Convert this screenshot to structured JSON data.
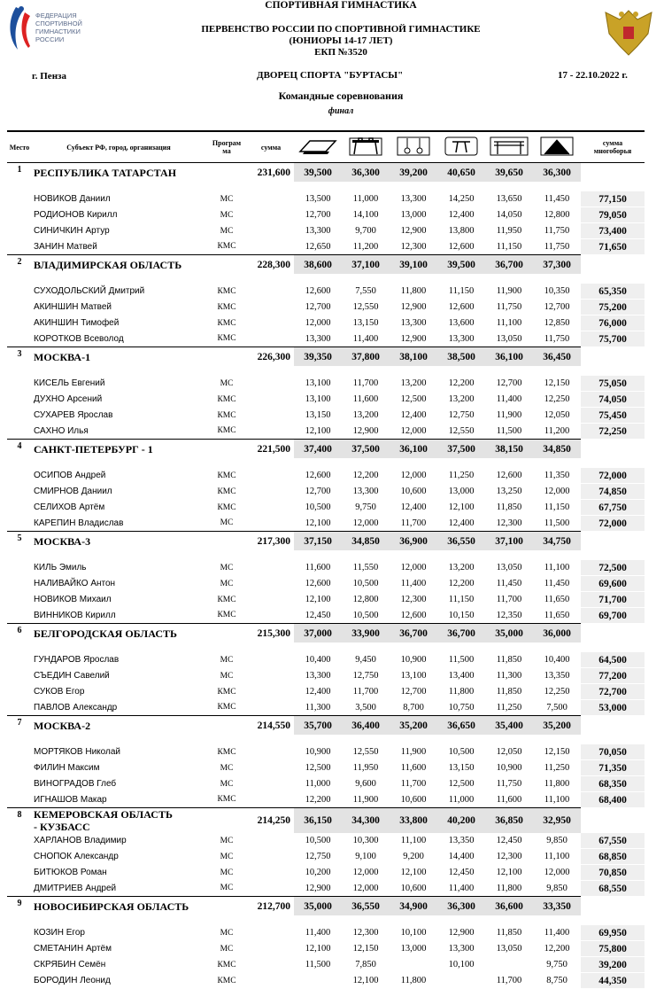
{
  "header": {
    "logo_text": [
      "ФЕДЕРАЦИЯ",
      "СПОРТИВНОЙ",
      "ГИМНАСТИКИ",
      "РОССИИ"
    ],
    "title_lines": [
      "СПОРТИВНАЯ ГИМНАСТИКА",
      "ПЕРВЕНСТВО РОССИИ  ПО СПОРТИВНОЙ ГИМНАСТИКЕ",
      "(ЮНИОРЫ 14-17 ЛЕТ)",
      "ЕКП №3520"
    ],
    "city": "г. Пенза",
    "venue": "ДВОРЕЦ СПОРТА \"БУРТАСЫ\"",
    "dates": "17 - 22.10.2022 г.",
    "competition": "Командные соревнования",
    "stage": "финал"
  },
  "table": {
    "columns": {
      "place": "Место",
      "subject": "Субъект РФ, город, организация",
      "program": "Програм\nма",
      "sum": "сумма",
      "total": "сумма\nмногоборья"
    },
    "teams": [
      {
        "place": "1",
        "name": "РЕСПУБЛИКА ТАТАРСТАН",
        "sum": "231,600",
        "scores": [
          "39,500",
          "36,300",
          "39,200",
          "40,650",
          "39,650",
          "36,300"
        ],
        "athletes": [
          {
            "name": "НОВИКОВ Даниил",
            "program": "МС",
            "scores": [
              "13,500",
              "11,000",
              "13,300",
              "14,250",
              "13,650",
              "11,450"
            ],
            "total": "77,150"
          },
          {
            "name": "РОДИОНОВ Кирилл",
            "program": "МС",
            "scores": [
              "12,700",
              "14,100",
              "13,000",
              "12,400",
              "14,050",
              "12,800"
            ],
            "total": "79,050"
          },
          {
            "name": "СИНИЧКИН Артур",
            "program": "МС",
            "scores": [
              "13,300",
              "9,700",
              "12,900",
              "13,800",
              "11,950",
              "11,750"
            ],
            "total": "73,400"
          },
          {
            "name": "ЗАНИН Матвей",
            "program": "КМС",
            "scores": [
              "12,650",
              "11,200",
              "12,300",
              "12,600",
              "11,150",
              "11,750"
            ],
            "total": "71,650"
          }
        ]
      },
      {
        "place": "2",
        "name": "ВЛАДИМИРСКАЯ ОБЛАСТЬ",
        "sum": "228,300",
        "scores": [
          "38,600",
          "37,100",
          "39,100",
          "39,500",
          "36,700",
          "37,300"
        ],
        "athletes": [
          {
            "name": "СУХОДОЛЬСКИЙ Дмитрий",
            "program": "КМС",
            "scores": [
              "12,600",
              "7,550",
              "11,800",
              "11,150",
              "11,900",
              "10,350"
            ],
            "total": "65,350"
          },
          {
            "name": "АКИНШИН Матвей",
            "program": "КМС",
            "scores": [
              "12,700",
              "12,550",
              "12,900",
              "12,600",
              "11,750",
              "12,700"
            ],
            "total": "75,200"
          },
          {
            "name": "АКИНШИН Тимофей",
            "program": "КМС",
            "scores": [
              "12,000",
              "13,150",
              "13,300",
              "13,600",
              "11,100",
              "12,850"
            ],
            "total": "76,000"
          },
          {
            "name": "КОРОТКОВ Всеволод",
            "program": "КМС",
            "scores": [
              "13,300",
              "11,400",
              "12,900",
              "13,300",
              "13,050",
              "11,750"
            ],
            "total": "75,700"
          }
        ]
      },
      {
        "place": "3",
        "name": "МОСКВА-1",
        "sum": "226,300",
        "scores": [
          "39,350",
          "37,800",
          "38,100",
          "38,500",
          "36,100",
          "36,450"
        ],
        "athletes": [
          {
            "name": "КИСЕЛЬ Евгений",
            "program": "МС",
            "scores": [
              "13,100",
              "11,700",
              "13,200",
              "12,200",
              "12,700",
              "12,150"
            ],
            "total": "75,050"
          },
          {
            "name": "ДУХНО Арсений",
            "program": "КМС",
            "scores": [
              "13,100",
              "11,600",
              "12,500",
              "13,200",
              "11,400",
              "12,250"
            ],
            "total": "74,050"
          },
          {
            "name": "СУХАРЕВ Ярослав",
            "program": "КМС",
            "scores": [
              "13,150",
              "13,200",
              "12,400",
              "12,750",
              "11,900",
              "12,050"
            ],
            "total": "75,450"
          },
          {
            "name": "САХНО Илья",
            "program": "КМС",
            "scores": [
              "12,100",
              "12,900",
              "12,000",
              "12,550",
              "11,500",
              "11,200"
            ],
            "total": "72,250"
          }
        ]
      },
      {
        "place": "4",
        "name": "САНКТ-ПЕТЕРБУРГ - 1",
        "sum": "221,500",
        "scores": [
          "37,400",
          "37,500",
          "36,100",
          "37,500",
          "38,150",
          "34,850"
        ],
        "athletes": [
          {
            "name": "ОСИПОВ Андрей",
            "program": "КМС",
            "scores": [
              "12,600",
              "12,200",
              "12,000",
              "11,250",
              "12,600",
              "11,350"
            ],
            "total": "72,000"
          },
          {
            "name": "СМИРНОВ Даниил",
            "program": "КМС",
            "scores": [
              "12,700",
              "13,300",
              "10,600",
              "13,000",
              "13,250",
              "12,000"
            ],
            "total": "74,850"
          },
          {
            "name": "СЕЛИХОВ Артём",
            "program": "КМС",
            "scores": [
              "10,500",
              "9,750",
              "12,400",
              "12,100",
              "11,850",
              "11,150"
            ],
            "total": "67,750"
          },
          {
            "name": "КАРЕПИН Владислав",
            "program": "МС",
            "scores": [
              "12,100",
              "12,000",
              "11,700",
              "12,400",
              "12,300",
              "11,500"
            ],
            "total": "72,000"
          }
        ]
      },
      {
        "place": "5",
        "name": "МОСКВА-3",
        "sum": "217,300",
        "scores": [
          "37,150",
          "34,850",
          "36,900",
          "36,550",
          "37,100",
          "34,750"
        ],
        "athletes": [
          {
            "name": "КИЛЬ Эмиль",
            "program": "МС",
            "scores": [
              "11,600",
              "11,550",
              "12,000",
              "13,200",
              "13,050",
              "11,100"
            ],
            "total": "72,500"
          },
          {
            "name": "НАЛИВАЙКО Антон",
            "program": "МС",
            "scores": [
              "12,600",
              "10,500",
              "11,400",
              "12,200",
              "11,450",
              "11,450"
            ],
            "total": "69,600"
          },
          {
            "name": "НОВИКОВ Михаил",
            "program": "КМС",
            "scores": [
              "12,100",
              "12,800",
              "12,300",
              "11,150",
              "11,700",
              "11,650"
            ],
            "total": "71,700"
          },
          {
            "name": "ВИННИКОВ Кирилл",
            "program": "КМС",
            "scores": [
              "12,450",
              "10,500",
              "12,600",
              "10,150",
              "12,350",
              "11,650"
            ],
            "total": "69,700"
          }
        ]
      },
      {
        "place": "6",
        "name": "БЕЛГОРОДСКАЯ ОБЛАСТЬ",
        "sum": "215,300",
        "scores": [
          "37,000",
          "33,900",
          "36,700",
          "36,700",
          "35,000",
          "36,000"
        ],
        "athletes": [
          {
            "name": "ГУНДАРОВ Ярослав",
            "program": "МС",
            "scores": [
              "10,400",
              "9,450",
              "10,900",
              "11,500",
              "11,850",
              "10,400"
            ],
            "total": "64,500"
          },
          {
            "name": "СЪЕДИН Савелий",
            "program": "МС",
            "scores": [
              "13,300",
              "12,750",
              "13,100",
              "13,400",
              "11,300",
              "13,350"
            ],
            "total": "77,200"
          },
          {
            "name": "СУКОВ Егор",
            "program": "КМС",
            "scores": [
              "12,400",
              "11,700",
              "12,700",
              "11,800",
              "11,850",
              "12,250"
            ],
            "total": "72,700"
          },
          {
            "name": "ПАВЛОВ Александр",
            "program": "КМС",
            "scores": [
              "11,300",
              "3,500",
              "8,700",
              "10,750",
              "11,250",
              "7,500"
            ],
            "total": "53,000"
          }
        ]
      },
      {
        "place": "7",
        "name": "МОСКВА-2",
        "sum": "214,550",
        "scores": [
          "35,700",
          "36,400",
          "35,200",
          "36,650",
          "35,400",
          "35,200"
        ],
        "athletes": [
          {
            "name": "МОРТЯКОВ Николай",
            "program": "КМС",
            "scores": [
              "10,900",
              "12,550",
              "11,900",
              "10,500",
              "12,050",
              "12,150"
            ],
            "total": "70,050"
          },
          {
            "name": "ФИЛИН Максим",
            "program": "МС",
            "scores": [
              "12,500",
              "11,950",
              "11,600",
              "13,150",
              "10,900",
              "11,250"
            ],
            "total": "71,350"
          },
          {
            "name": "ВИНОГРАДОВ Глеб",
            "program": "МС",
            "scores": [
              "11,000",
              "9,600",
              "11,700",
              "12,500",
              "11,750",
              "11,800"
            ],
            "total": "68,350"
          },
          {
            "name": "ИГНАШОВ Макар",
            "program": "КМС",
            "scores": [
              "12,200",
              "11,900",
              "10,600",
              "11,000",
              "11,600",
              "11,100"
            ],
            "total": "68,400"
          }
        ]
      },
      {
        "place": "8",
        "name": "КЕМЕРОВСКАЯ ОБЛАСТЬ\n - КУЗБАСС",
        "sum": "214,250",
        "scores": [
          "36,150",
          "34,300",
          "33,800",
          "40,200",
          "36,850",
          "32,950"
        ],
        "athletes": [
          {
            "name": "ХАРЛАНОВ Владимир",
            "program": "МС",
            "scores": [
              "10,500",
              "10,300",
              "11,100",
              "13,350",
              "12,450",
              "9,850"
            ],
            "total": "67,550"
          },
          {
            "name": "СНОПОК Александр",
            "program": "МС",
            "scores": [
              "12,750",
              "9,100",
              "9,200",
              "14,400",
              "12,300",
              "11,100"
            ],
            "total": "68,850"
          },
          {
            "name": "БИТЮКОВ Роман",
            "program": "МС",
            "scores": [
              "10,200",
              "12,000",
              "12,100",
              "12,450",
              "12,100",
              "12,000"
            ],
            "total": "70,850"
          },
          {
            "name": "ДМИТРИЕВ Андрей",
            "program": "МС",
            "scores": [
              "12,900",
              "12,000",
              "10,600",
              "11,400",
              "11,800",
              "9,850"
            ],
            "total": "68,550"
          }
        ]
      },
      {
        "place": "9",
        "name": "НОВОСИБИРСКАЯ ОБЛАСТЬ",
        "sum": "212,700",
        "scores": [
          "35,000",
          "36,550",
          "34,900",
          "36,300",
          "36,600",
          "33,350"
        ],
        "athletes": [
          {
            "name": "КОЗИН Егор",
            "program": "МС",
            "scores": [
              "11,400",
              "12,300",
              "10,100",
              "12,900",
              "11,850",
              "11,400"
            ],
            "total": "69,950"
          },
          {
            "name": "СМЕТАНИН Артём",
            "program": "МС",
            "scores": [
              "12,100",
              "12,150",
              "13,000",
              "13,300",
              "13,050",
              "12,200"
            ],
            "total": "75,800"
          },
          {
            "name": "СКРЯБИН Семён",
            "program": "КМС",
            "scores": [
              "11,500",
              "7,850",
              null,
              "10,100",
              null,
              "9,750"
            ],
            "total": "39,200"
          },
          {
            "name": "БОРОДИН Леонид",
            "program": "КМС",
            "scores": [
              null,
              "12,100",
              "11,800",
              null,
              "11,700",
              "8,750"
            ],
            "total": "44,350"
          }
        ]
      }
    ]
  }
}
